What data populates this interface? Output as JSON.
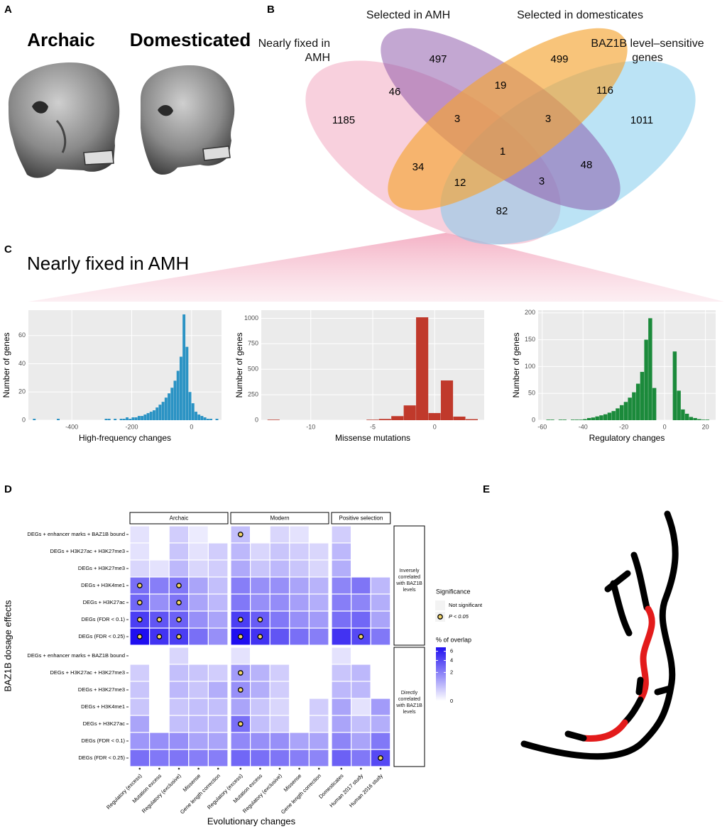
{
  "panel_labels": {
    "a": "A",
    "b": "B",
    "c": "C",
    "d": "D",
    "e": "E"
  },
  "panel_a": {
    "archaic": "Archaic",
    "domesticated": "Domesticated"
  },
  "panel_c": {
    "title": "Nearly fixed in AMH"
  },
  "chart_data": [
    {
      "type": "venn",
      "sets": [
        {
          "name": "Nearly fixed in AMH",
          "color": "rgba(240,150,180,0.45)"
        },
        {
          "name": "Selected in AMH",
          "color": "rgba(135,80,165,0.5)"
        },
        {
          "name": "Selected in domesticates",
          "color": "rgba(245,165,50,0.65)"
        },
        {
          "name": "BAZ1B level–sensitive genes",
          "color": "rgba(120,200,235,0.5)"
        }
      ],
      "values": [
        1185,
        497,
        499,
        1011,
        46,
        19,
        116,
        3,
        3,
        1,
        34,
        48,
        12,
        3,
        82
      ]
    },
    {
      "type": "histogram",
      "x_label": "High-frequency changes",
      "y_label": "Number of genes",
      "color": "#2b93c4",
      "bins": [
        -530,
        -520,
        -510,
        -500,
        -490,
        -480,
        -470,
        -460,
        -450,
        -440,
        -430,
        -420,
        -410,
        -400,
        -390,
        -380,
        -370,
        -360,
        -350,
        -340,
        -330,
        -320,
        -310,
        -300,
        -290,
        -280,
        -270,
        -260,
        -250,
        -240,
        -230,
        -220,
        -210,
        -200,
        -190,
        -180,
        -170,
        -160,
        -150,
        -140,
        -130,
        -120,
        -110,
        -100,
        -90,
        -80,
        -70,
        -60,
        -50,
        -40,
        -30,
        -20,
        -10,
        0,
        10,
        20,
        30,
        40,
        50,
        60,
        70,
        80,
        90
      ],
      "counts": [
        1,
        0,
        0,
        0,
        0,
        0,
        0,
        0,
        1,
        0,
        0,
        0,
        0,
        0,
        0,
        0,
        0,
        0,
        0,
        0,
        0,
        0,
        0,
        0,
        1,
        1,
        0,
        1,
        0,
        1,
        1,
        2,
        1,
        2,
        2,
        3,
        3,
        4,
        5,
        6,
        7,
        9,
        11,
        13,
        16,
        19,
        23,
        28,
        35,
        45,
        75,
        52,
        20,
        12,
        6,
        4,
        3,
        2,
        1,
        1,
        0,
        1
      ],
      "xlim": [
        -545,
        100
      ],
      "xticks": [
        -400,
        -200,
        0
      ],
      "ylim": [
        0,
        78
      ],
      "yticks": [
        0,
        20,
        40,
        60
      ]
    },
    {
      "type": "histogram",
      "x_label": "Missense mutations",
      "y_label": "Number of genes",
      "color": "#c0392b",
      "bins": [
        -13.5,
        -12.5,
        -11.5,
        -10.5,
        -9.5,
        -8.5,
        -7.5,
        -6.5,
        -5.5,
        -4.5,
        -3.5,
        -2.5,
        -1.5,
        -0.5,
        0.5,
        1.5,
        2.5,
        3.5
      ],
      "counts": [
        5,
        0,
        0,
        0,
        0,
        0,
        0,
        0,
        5,
        12,
        40,
        145,
        1010,
        70,
        390,
        35,
        10
      ],
      "xlim": [
        -14,
        4
      ],
      "xticks": [
        -10,
        -5,
        0
      ],
      "ylim": [
        0,
        1080
      ],
      "yticks": [
        0,
        250,
        500,
        750,
        1000
      ]
    },
    {
      "type": "histogram",
      "x_label": "Regulatory changes",
      "y_label": "Number of genes",
      "color": "#1b8a3b",
      "bins": [
        -58,
        -56,
        -54,
        -52,
        -50,
        -48,
        -46,
        -44,
        -42,
        -40,
        -38,
        -36,
        -34,
        -32,
        -30,
        -28,
        -26,
        -24,
        -22,
        -20,
        -18,
        -16,
        -14,
        -12,
        -10,
        -8,
        -6,
        -4,
        -2,
        0,
        2,
        4,
        6,
        8,
        10,
        12,
        14,
        16,
        18,
        20,
        22
      ],
      "counts": [
        1,
        1,
        0,
        1,
        1,
        0,
        1,
        1,
        1,
        2,
        4,
        5,
        7,
        9,
        11,
        14,
        17,
        22,
        28,
        34,
        42,
        52,
        68,
        90,
        150,
        190,
        60,
        0,
        0,
        0,
        0,
        128,
        55,
        20,
        12,
        6,
        4,
        2,
        1,
        1
      ],
      "xlim": [
        -62,
        25
      ],
      "xticks": [
        -60,
        -40,
        -20,
        0,
        20
      ],
      "ylim": [
        0,
        205
      ],
      "yticks": [
        0,
        50,
        100,
        150,
        200
      ]
    },
    {
      "type": "heatmap",
      "x_label": "Evolutionary changes",
      "y_label": "BAZ1B dosage effects",
      "col_facets": [
        {
          "label": "Archaic",
          "columns": [
            "Regulatory (excess)",
            "Mutation excess",
            "Regulatory (exclusive)",
            "Missense",
            "Gene length correction"
          ]
        },
        {
          "label": "Modern",
          "columns": [
            "Regulatory (excess)",
            "Mutation excess",
            "Regulatory (exclusive)",
            "Missense",
            "Gene length correction"
          ]
        },
        {
          "label": "Positive selection",
          "columns": [
            "Domesticates",
            "Human 2017 study",
            "Human 2016 study"
          ]
        }
      ],
      "row_facets": [
        "Inversely correlated with BAZ1B levels",
        "Directly correlated with BAZ1B levels"
      ],
      "rows": [
        "DEGs + enhancer marks + BAZ1B bound",
        "DEGs + H3K27ac + H3K27me3",
        "DEGs + H3K27me3",
        "DEGs + H3K4me1",
        "DEGs + H3K27ac",
        "DEGs (FDR < 0.1)",
        "DEGs (FDR < 0.25)"
      ],
      "values": [
        [
          [
            0.1,
            0,
            0.3,
            0.05,
            0,
            0.5,
            0,
            0.2,
            0.1,
            0,
            0.3,
            0,
            0
          ],
          [
            0.1,
            0,
            0.4,
            0.1,
            0.3,
            0.6,
            0.2,
            0.4,
            0.3,
            0.2,
            0.6,
            0,
            0
          ],
          [
            0.2,
            0.1,
            0.6,
            0.2,
            0.3,
            0.9,
            0.4,
            0.6,
            0.4,
            0.2,
            0.8,
            0,
            0
          ],
          [
            2.5,
            2,
            2.2,
            1,
            0.5,
            2,
            1.5,
            1.5,
            1,
            0.7,
            1.8,
            2.3,
            0.6
          ],
          [
            2.8,
            1.5,
            2.3,
            1,
            0.6,
            2.2,
            1.5,
            1.6,
            1.1,
            0.8,
            2,
            1.8,
            0.8
          ],
          [
            4.5,
            3.5,
            3,
            1.5,
            1,
            4.5,
            3.2,
            2.2,
            1.5,
            1.2,
            2.5,
            2.8,
            1
          ],
          [
            7,
            5,
            4.5,
            2.5,
            1.5,
            7,
            5,
            3.5,
            2.5,
            2,
            5,
            4,
            2.2
          ]
        ],
        [
          [
            0,
            0,
            0.2,
            0,
            0,
            0.1,
            0,
            0,
            0,
            0,
            0.1,
            0,
            0
          ],
          [
            0.3,
            0,
            0.5,
            0.4,
            0.3,
            1.2,
            0.7,
            0.3,
            0,
            0,
            0.4,
            0.6,
            0
          ],
          [
            0.4,
            0,
            0.6,
            0.4,
            0.8,
            1.5,
            0.8,
            0.3,
            0,
            0,
            0.6,
            0.6,
            0
          ],
          [
            0.4,
            0,
            0.4,
            0.5,
            0.5,
            1,
            0.4,
            0.2,
            0,
            0.3,
            1,
            0.1,
            1.2
          ],
          [
            1,
            0,
            0.5,
            0.6,
            0.6,
            2.5,
            0.5,
            0.3,
            0,
            0.3,
            1,
            0.5,
            0.8
          ],
          [
            1.3,
            1.5,
            1.5,
            1,
            1,
            1.7,
            1.5,
            1.5,
            1,
            1,
            1.8,
            1,
            2.2
          ],
          [
            2.5,
            2.2,
            2.3,
            2,
            2,
            2.8,
            2.5,
            2.3,
            2,
            1.8,
            3,
            2.2,
            4
          ]
        ]
      ],
      "significant": [
        [
          [
            0,
            0,
            0,
            0,
            0,
            1,
            0,
            0,
            0,
            0,
            0,
            0,
            0
          ],
          [
            0,
            0,
            0,
            0,
            0,
            0,
            0,
            0,
            0,
            0,
            0,
            0,
            0
          ],
          [
            0,
            0,
            0,
            0,
            0,
            0,
            0,
            0,
            0,
            0,
            0,
            0,
            0
          ],
          [
            1,
            0,
            1,
            0,
            0,
            0,
            0,
            0,
            0,
            0,
            0,
            0,
            0
          ],
          [
            1,
            0,
            1,
            0,
            0,
            0,
            0,
            0,
            0,
            0,
            0,
            0,
            0
          ],
          [
            1,
            1,
            1,
            0,
            0,
            1,
            1,
            0,
            0,
            0,
            0,
            0,
            0
          ],
          [
            1,
            1,
            1,
            0,
            0,
            1,
            1,
            0,
            0,
            0,
            0,
            1,
            0
          ]
        ],
        [
          [
            0,
            0,
            0,
            0,
            0,
            0,
            0,
            0,
            0,
            0,
            0,
            0,
            0
          ],
          [
            0,
            0,
            0,
            0,
            0,
            1,
            0,
            0,
            0,
            0,
            0,
            0,
            0
          ],
          [
            0,
            0,
            0,
            0,
            0,
            1,
            0,
            0,
            0,
            0,
            0,
            0,
            0
          ],
          [
            0,
            0,
            0,
            0,
            0,
            0,
            0,
            0,
            0,
            0,
            0,
            0,
            0
          ],
          [
            0,
            0,
            0,
            0,
            0,
            1,
            0,
            0,
            0,
            0,
            0,
            0,
            0
          ],
          [
            0,
            0,
            0,
            0,
            0,
            0,
            0,
            0,
            0,
            0,
            0,
            0,
            0
          ],
          [
            0,
            0,
            0,
            0,
            0,
            0,
            0,
            0,
            0,
            0,
            0,
            0,
            1
          ]
        ]
      ],
      "legend": {
        "title": "Significance",
        "not_significant": "Not significant",
        "significant": "P < 0.05"
      },
      "colorbar": {
        "title": "% of overlap",
        "lim": [
          0,
          7
        ],
        "ticks": [
          0,
          2,
          4,
          6
        ],
        "scale": "sqrt",
        "colors": [
          "#ffffff",
          "#1f0ef0"
        ]
      }
    }
  ]
}
